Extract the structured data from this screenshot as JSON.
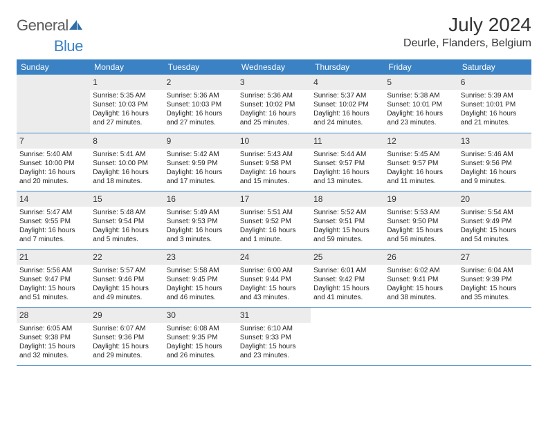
{
  "brand": {
    "general": "General",
    "blue": "Blue",
    "icon_color": "#2f6ea8"
  },
  "header": {
    "title": "July 2024",
    "location": "Deurle, Flanders, Belgium"
  },
  "colors": {
    "header_bg": "#3b82c4",
    "header_fg": "#ffffff",
    "daynum_bg": "#ececec",
    "border": "#3b82c4",
    "text": "#222222"
  },
  "weekdays": [
    "Sunday",
    "Monday",
    "Tuesday",
    "Wednesday",
    "Thursday",
    "Friday",
    "Saturday"
  ],
  "weeks": [
    [
      null,
      {
        "n": "1",
        "sunrise": "5:35 AM",
        "sunset": "10:03 PM",
        "daylight": "16 hours and 27 minutes."
      },
      {
        "n": "2",
        "sunrise": "5:36 AM",
        "sunset": "10:03 PM",
        "daylight": "16 hours and 27 minutes."
      },
      {
        "n": "3",
        "sunrise": "5:36 AM",
        "sunset": "10:02 PM",
        "daylight": "16 hours and 25 minutes."
      },
      {
        "n": "4",
        "sunrise": "5:37 AM",
        "sunset": "10:02 PM",
        "daylight": "16 hours and 24 minutes."
      },
      {
        "n": "5",
        "sunrise": "5:38 AM",
        "sunset": "10:01 PM",
        "daylight": "16 hours and 23 minutes."
      },
      {
        "n": "6",
        "sunrise": "5:39 AM",
        "sunset": "10:01 PM",
        "daylight": "16 hours and 21 minutes."
      }
    ],
    [
      {
        "n": "7",
        "sunrise": "5:40 AM",
        "sunset": "10:00 PM",
        "daylight": "16 hours and 20 minutes."
      },
      {
        "n": "8",
        "sunrise": "5:41 AM",
        "sunset": "10:00 PM",
        "daylight": "16 hours and 18 minutes."
      },
      {
        "n": "9",
        "sunrise": "5:42 AM",
        "sunset": "9:59 PM",
        "daylight": "16 hours and 17 minutes."
      },
      {
        "n": "10",
        "sunrise": "5:43 AM",
        "sunset": "9:58 PM",
        "daylight": "16 hours and 15 minutes."
      },
      {
        "n": "11",
        "sunrise": "5:44 AM",
        "sunset": "9:57 PM",
        "daylight": "16 hours and 13 minutes."
      },
      {
        "n": "12",
        "sunrise": "5:45 AM",
        "sunset": "9:57 PM",
        "daylight": "16 hours and 11 minutes."
      },
      {
        "n": "13",
        "sunrise": "5:46 AM",
        "sunset": "9:56 PM",
        "daylight": "16 hours and 9 minutes."
      }
    ],
    [
      {
        "n": "14",
        "sunrise": "5:47 AM",
        "sunset": "9:55 PM",
        "daylight": "16 hours and 7 minutes."
      },
      {
        "n": "15",
        "sunrise": "5:48 AM",
        "sunset": "9:54 PM",
        "daylight": "16 hours and 5 minutes."
      },
      {
        "n": "16",
        "sunrise": "5:49 AM",
        "sunset": "9:53 PM",
        "daylight": "16 hours and 3 minutes."
      },
      {
        "n": "17",
        "sunrise": "5:51 AM",
        "sunset": "9:52 PM",
        "daylight": "16 hours and 1 minute."
      },
      {
        "n": "18",
        "sunrise": "5:52 AM",
        "sunset": "9:51 PM",
        "daylight": "15 hours and 59 minutes."
      },
      {
        "n": "19",
        "sunrise": "5:53 AM",
        "sunset": "9:50 PM",
        "daylight": "15 hours and 56 minutes."
      },
      {
        "n": "20",
        "sunrise": "5:54 AM",
        "sunset": "9:49 PM",
        "daylight": "15 hours and 54 minutes."
      }
    ],
    [
      {
        "n": "21",
        "sunrise": "5:56 AM",
        "sunset": "9:47 PM",
        "daylight": "15 hours and 51 minutes."
      },
      {
        "n": "22",
        "sunrise": "5:57 AM",
        "sunset": "9:46 PM",
        "daylight": "15 hours and 49 minutes."
      },
      {
        "n": "23",
        "sunrise": "5:58 AM",
        "sunset": "9:45 PM",
        "daylight": "15 hours and 46 minutes."
      },
      {
        "n": "24",
        "sunrise": "6:00 AM",
        "sunset": "9:44 PM",
        "daylight": "15 hours and 43 minutes."
      },
      {
        "n": "25",
        "sunrise": "6:01 AM",
        "sunset": "9:42 PM",
        "daylight": "15 hours and 41 minutes."
      },
      {
        "n": "26",
        "sunrise": "6:02 AM",
        "sunset": "9:41 PM",
        "daylight": "15 hours and 38 minutes."
      },
      {
        "n": "27",
        "sunrise": "6:04 AM",
        "sunset": "9:39 PM",
        "daylight": "15 hours and 35 minutes."
      }
    ],
    [
      {
        "n": "28",
        "sunrise": "6:05 AM",
        "sunset": "9:38 PM",
        "daylight": "15 hours and 32 minutes."
      },
      {
        "n": "29",
        "sunrise": "6:07 AM",
        "sunset": "9:36 PM",
        "daylight": "15 hours and 29 minutes."
      },
      {
        "n": "30",
        "sunrise": "6:08 AM",
        "sunset": "9:35 PM",
        "daylight": "15 hours and 26 minutes."
      },
      {
        "n": "31",
        "sunrise": "6:10 AM",
        "sunset": "9:33 PM",
        "daylight": "15 hours and 23 minutes."
      },
      null,
      null,
      null
    ]
  ],
  "labels": {
    "sunrise": "Sunrise:",
    "sunset": "Sunset:",
    "daylight": "Daylight:"
  }
}
